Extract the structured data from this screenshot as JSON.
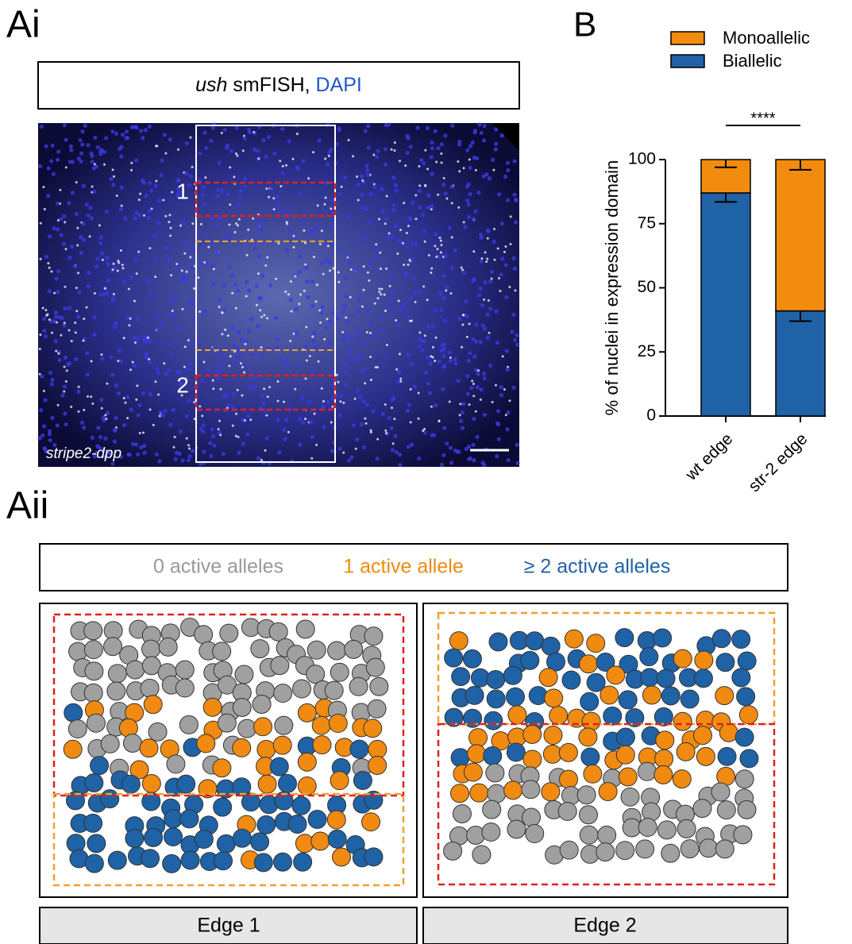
{
  "panel_labels": {
    "ai": "Ai",
    "b": "B",
    "aii": "Aii"
  },
  "image_panel": {
    "title_gene": "ush",
    "title_probe": " smFISH, ",
    "title_stain": "DAPI",
    "region_1": "1",
    "region_2": "2",
    "genotype": "stripe2-dpp"
  },
  "chart_data": {
    "type": "bar",
    "stacked": true,
    "categories": [
      "wt edge",
      "str-2 edge"
    ],
    "series": [
      {
        "name": "Biallelic",
        "color": "#1f62a5",
        "values": [
          87,
          41
        ],
        "errors": [
          3.5,
          4
        ]
      },
      {
        "name": "Monoallelic",
        "color": "#f28c0f",
        "values": [
          13,
          59
        ],
        "errors": [
          3,
          4
        ]
      }
    ],
    "ylabel": "% of nuclei in expression domain",
    "ylim": [
      0,
      100
    ],
    "yticks": [
      0,
      25,
      50,
      75,
      100
    ],
    "significance": "****"
  },
  "schematic": {
    "legend": [
      "0 active alleles",
      "1 active allele",
      "≥ 2 active alleles"
    ],
    "panels": [
      "Edge 1",
      "Edge 2"
    ]
  }
}
